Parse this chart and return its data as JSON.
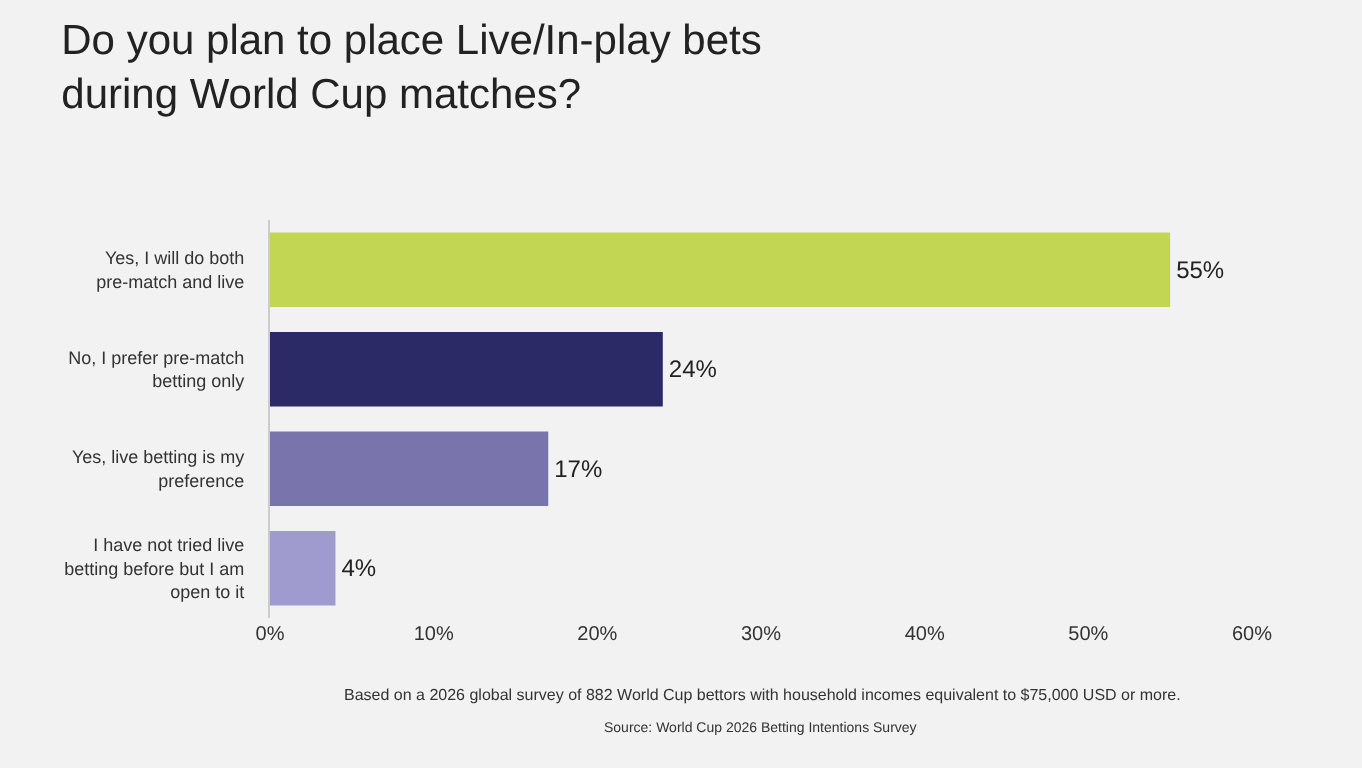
{
  "chart_data": {
    "type": "bar",
    "orientation": "horizontal",
    "title": "Do you plan to place Live/In-play bets during World Cup matches?",
    "categories": [
      "Yes, I will do both pre-match and live",
      "No, I prefer pre-match betting only",
      "Yes, live betting is my preference",
      "I have not tried live betting before but I am open to it"
    ],
    "values": [
      55,
      24,
      17,
      4
    ],
    "colors": [
      "#c2d654",
      "#2b2a66",
      "#7a74ad",
      "#a09bcf"
    ],
    "value_labels": [
      "55%",
      "24%",
      "17%",
      "4%"
    ],
    "xlim": [
      0,
      60
    ],
    "xticks": [
      {
        "value": 0,
        "label": "0%"
      },
      {
        "value": 10,
        "label": "10%"
      },
      {
        "value": 20,
        "label": "20%"
      },
      {
        "value": 30,
        "label": "30%"
      },
      {
        "value": 40,
        "label": "40%"
      },
      {
        "value": 50,
        "label": "50%"
      },
      {
        "value": 60,
        "label": "60%"
      }
    ],
    "grid": false,
    "annotations": [
      "Based on a 2026 global survey of 882 World Cup bettors with household incomes equivalent to $75,000 USD or more.",
      "Source: World Cup 2026 Betting Intentions Survey"
    ]
  }
}
